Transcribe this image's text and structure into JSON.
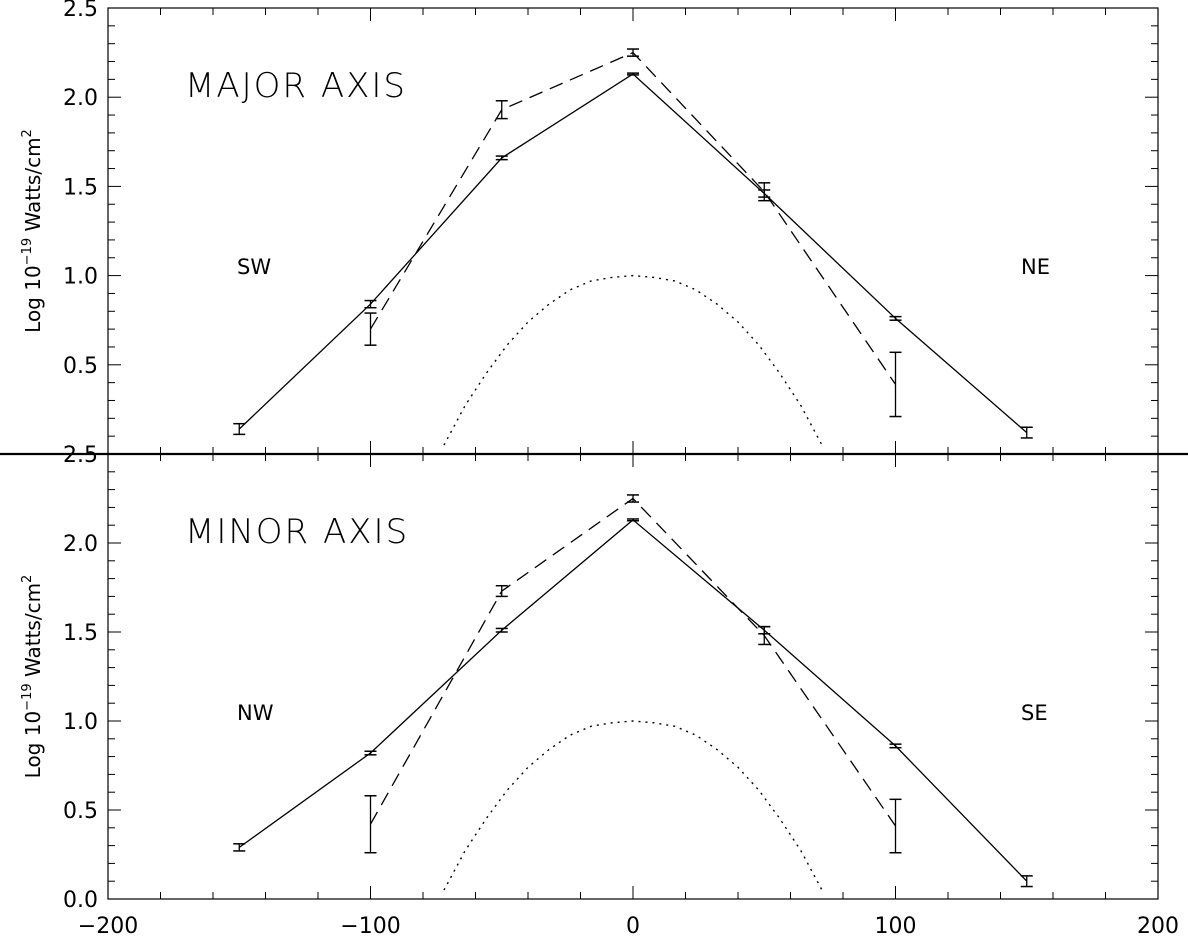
{
  "chart_data": [
    {
      "type": "line",
      "panel_label": "MAJOR AXIS",
      "left_label": "SW",
      "right_label": "NE",
      "ylabel": "Log 10",
      "ylabel_exp": "−19",
      "ylabel_tail": " Watts/cm",
      "ylabel_sq": "2",
      "xlim": [
        -200,
        200
      ],
      "ylim": [
        0.0,
        2.5
      ],
      "x_ticks": [
        -200,
        -100,
        0,
        100,
        200
      ],
      "y_ticks": [
        0.5,
        1.0,
        1.5,
        2.0,
        2.5
      ],
      "y_tick_labels": [
        "0.5",
        "1.0",
        "1.5",
        "2.0",
        "2.5"
      ],
      "series": [
        {
          "style": "solid",
          "x": [
            -150,
            -100,
            -50,
            0,
            50,
            100,
            150
          ],
          "y": [
            0.14,
            0.84,
            1.66,
            2.13,
            1.46,
            0.76,
            0.12
          ],
          "err": [
            0.03,
            0.02,
            0.01,
            0.005,
            0.02,
            0.01,
            0.03
          ]
        },
        {
          "style": "dashed",
          "x": [
            -100,
            -50,
            0,
            50,
            100
          ],
          "y": [
            0.7,
            1.93,
            2.25,
            1.47,
            0.39
          ],
          "err": [
            0.09,
            0.05,
            0.02,
            0.05,
            0.18
          ]
        },
        {
          "style": "dotted",
          "x": [
            -72,
            -64,
            -56,
            -48,
            -40,
            -32,
            -24,
            -16,
            -8,
            0,
            8,
            16,
            24,
            32,
            40,
            48,
            56,
            64,
            72
          ],
          "y": [
            0.05,
            0.27,
            0.45,
            0.61,
            0.74,
            0.84,
            0.92,
            0.97,
            0.99,
            1.0,
            0.99,
            0.97,
            0.92,
            0.84,
            0.74,
            0.61,
            0.45,
            0.27,
            0.05
          ]
        }
      ]
    },
    {
      "type": "line",
      "panel_label": "MINOR AXIS",
      "left_label": "NW",
      "right_label": "SE",
      "ylabel": "Log 10",
      "ylabel_exp": "−19",
      "ylabel_tail": " Watts/cm",
      "ylabel_sq": "2",
      "xlim": [
        -200,
        200
      ],
      "ylim": [
        0.0,
        2.5
      ],
      "x_ticks": [
        -200,
        -100,
        0,
        100,
        200
      ],
      "x_tick_labels": [
        "−200",
        "−100",
        "0",
        "100",
        "200"
      ],
      "y_ticks": [
        0.0,
        0.5,
        1.0,
        1.5,
        2.0,
        2.5
      ],
      "y_tick_labels": [
        "0.0",
        "0.5",
        "1.0",
        "1.5",
        "2.0",
        "2.5"
      ],
      "series": [
        {
          "style": "solid",
          "x": [
            -150,
            -100,
            -50,
            0,
            50,
            100,
            150
          ],
          "y": [
            0.29,
            0.82,
            1.51,
            2.13,
            1.51,
            0.86,
            0.1
          ],
          "err": [
            0.02,
            0.01,
            0.01,
            0.005,
            0.02,
            0.01,
            0.03
          ]
        },
        {
          "style": "dashed",
          "x": [
            -100,
            -50,
            0,
            50,
            100
          ],
          "y": [
            0.42,
            1.73,
            2.25,
            1.48,
            0.41
          ],
          "err": [
            0.16,
            0.03,
            0.02,
            0.05,
            0.15
          ]
        },
        {
          "style": "dotted",
          "x": [
            -72,
            -64,
            -56,
            -48,
            -40,
            -32,
            -24,
            -16,
            -8,
            0,
            8,
            16,
            24,
            32,
            40,
            48,
            56,
            64,
            72
          ],
          "y": [
            0.05,
            0.27,
            0.45,
            0.61,
            0.74,
            0.84,
            0.92,
            0.97,
            0.99,
            1.0,
            0.99,
            0.97,
            0.92,
            0.84,
            0.74,
            0.61,
            0.45,
            0.27,
            0.05
          ]
        }
      ]
    }
  ]
}
